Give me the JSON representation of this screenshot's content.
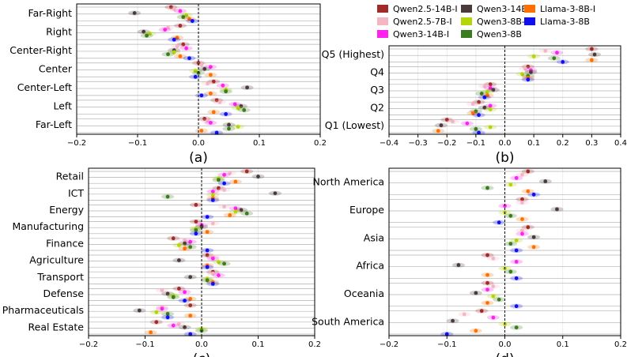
{
  "legend": {
    "placement": "top-right",
    "entries": [
      {
        "name": "Qwen2.5-14B-I",
        "color": "#a32a2a"
      },
      {
        "name": "Qwen2.5-7B-I",
        "color": "#f4b6c2"
      },
      {
        "name": "Qwen3-14B-I",
        "color": "#ff22ee"
      },
      {
        "name": "Qwen3-14B",
        "color": "#4b3a3a"
      },
      {
        "name": "Qwen3-8B-I",
        "color": "#b5d40a"
      },
      {
        "name": "Qwen3-8B",
        "color": "#3a7d1e"
      },
      {
        "name": "Llama-3-8B-I",
        "color": "#ff7000"
      },
      {
        "name": "Llama-3-8B",
        "color": "#1010ee"
      }
    ]
  },
  "chart_data": [
    {
      "type": "scatter",
      "label": "(a)",
      "xlim": [
        -0.2,
        0.2
      ],
      "xticks": [
        "−0.2",
        "−0.1",
        "0.0",
        "0.1",
        "0.2"
      ],
      "categories": [
        "Far-Right",
        "Right",
        "Center-Right",
        "Center",
        "Center-Left",
        "Left",
        "Far-Left"
      ],
      "grid": true,
      "series": [
        {
          "name": "Qwen2.5-14B-I",
          "values": [
            -0.045,
            -0.03,
            -0.025,
            0.0,
            0.025,
            0.03,
            0.01
          ]
        },
        {
          "name": "Qwen2.5-7B-I",
          "values": [
            -0.04,
            -0.05,
            -0.035,
            0.005,
            0.015,
            0.035,
            0.015
          ]
        },
        {
          "name": "Qwen3-14B-I",
          "values": [
            -0.03,
            -0.055,
            -0.02,
            0.02,
            0.04,
            0.06,
            0.02
          ]
        },
        {
          "name": "Qwen3-14B",
          "values": [
            -0.105,
            -0.09,
            -0.04,
            0.01,
            0.08,
            0.07,
            0.05
          ]
        },
        {
          "name": "Qwen3-8B-I",
          "values": [
            -0.02,
            -0.08,
            -0.04,
            -0.005,
            0.045,
            0.065,
            0.065
          ]
        },
        {
          "name": "Qwen3-8B",
          "values": [
            -0.025,
            -0.085,
            -0.05,
            0.0,
            0.045,
            0.075,
            0.05
          ]
        },
        {
          "name": "Llama-3-8B-I",
          "values": [
            -0.015,
            -0.035,
            -0.03,
            0.02,
            0.02,
            0.025,
            0.005
          ]
        },
        {
          "name": "Llama-3-8B",
          "values": [
            -0.01,
            -0.04,
            -0.015,
            -0.005,
            0.005,
            0.045,
            0.03
          ]
        }
      ]
    },
    {
      "type": "scatter",
      "label": "(b)",
      "xlim": [
        -0.4,
        0.4
      ],
      "xticks": [
        "−0.4",
        "−0.3",
        "−0.2",
        "−0.1",
        "0.0",
        "0.1",
        "0.2",
        "0.3",
        "0.4"
      ],
      "categories": [
        "Q5 (Highest)",
        "Q4",
        "Q3",
        "Q2",
        "Q1 (Lowest)"
      ],
      "grid": true,
      "series": [
        {
          "name": "Qwen2.5-14B-I",
          "values": [
            0.3,
            0.08,
            -0.05,
            -0.09,
            -0.2
          ]
        },
        {
          "name": "Qwen2.5-7B-I",
          "values": [
            0.14,
            0.07,
            -0.07,
            -0.11,
            -0.18
          ]
        },
        {
          "name": "Qwen3-14B-I",
          "values": [
            0.18,
            0.09,
            -0.05,
            -0.05,
            -0.13
          ]
        },
        {
          "name": "Qwen3-14B",
          "values": [
            0.31,
            0.09,
            -0.04,
            -0.07,
            -0.22
          ]
        },
        {
          "name": "Qwen3-8B-I",
          "values": [
            0.1,
            0.06,
            -0.06,
            -0.05,
            -0.05
          ]
        },
        {
          "name": "Qwen3-8B",
          "values": [
            0.17,
            0.08,
            -0.08,
            -0.1,
            -0.1
          ]
        },
        {
          "name": "Llama-3-8B-I",
          "values": [
            0.3,
            0.08,
            -0.06,
            -0.11,
            -0.23
          ]
        },
        {
          "name": "Llama-3-8B",
          "values": [
            0.2,
            0.08,
            -0.07,
            -0.09,
            -0.09
          ]
        }
      ]
    },
    {
      "type": "scatter",
      "label": "(c)",
      "xlim": [
        -0.2,
        0.2
      ],
      "xticks": [
        "−0.2",
        "−0.1",
        "0.0",
        "0.1",
        "0.2"
      ],
      "categories": [
        "Retail",
        "ICT",
        "Energy",
        "Manufacturing",
        "Finance",
        "Agriculture",
        "Transport",
        "Defense",
        "Pharmaceuticals",
        "Real Estate"
      ],
      "grid": true,
      "series": [
        {
          "name": "Qwen2.5-14B-I",
          "values": [
            0.08,
            0.03,
            -0.01,
            -0.01,
            -0.05,
            0.01,
            0.02,
            -0.04,
            -0.02,
            -0.08
          ]
        },
        {
          "name": "Qwen2.5-7B-I",
          "values": [
            0.05,
            0.04,
            0.04,
            0.02,
            -0.03,
            0.02,
            0.02,
            -0.07,
            -0.07,
            -0.04
          ]
        },
        {
          "name": "Qwen3-14B-I",
          "values": [
            0.04,
            0.02,
            0.06,
            0.0,
            -0.02,
            0.02,
            0.03,
            -0.03,
            -0.07,
            -0.05
          ]
        },
        {
          "name": "Qwen3-14B",
          "values": [
            0.1,
            0.13,
            0.07,
            0.0,
            -0.03,
            -0.04,
            -0.02,
            -0.06,
            -0.11,
            -0.03
          ]
        },
        {
          "name": "Qwen3-8B-I",
          "values": [
            0.03,
            0.02,
            0.06,
            -0.01,
            -0.04,
            0.03,
            0.01,
            -0.05,
            -0.08,
            0.0
          ]
        },
        {
          "name": "Qwen3-8B",
          "values": [
            0.03,
            -0.06,
            0.08,
            -0.01,
            -0.02,
            0.04,
            0.01,
            -0.05,
            -0.06,
            0.0
          ]
        },
        {
          "name": "Llama-3-8B-I",
          "values": [
            0.06,
            0.02,
            0.05,
            0.01,
            -0.03,
            0.01,
            0.02,
            -0.02,
            -0.02,
            -0.09
          ]
        },
        {
          "name": "Llama-3-8B",
          "values": [
            0.04,
            0.02,
            0.01,
            -0.01,
            0.01,
            0.01,
            0.02,
            -0.03,
            -0.06,
            -0.02
          ]
        }
      ]
    },
    {
      "type": "scatter",
      "label": "(d)",
      "xlim": [
        -0.2,
        0.2
      ],
      "xticks": [
        "−0.2",
        "−0.1",
        "0.0",
        "0.1",
        "0.2"
      ],
      "categories": [
        "North America",
        "Europe",
        "Asia",
        "Africa",
        "Oceania",
        "South America"
      ],
      "grid": true,
      "series": [
        {
          "name": "Qwen2.5-14B-I",
          "values": [
            0.04,
            0.03,
            0.04,
            -0.03,
            -0.03,
            -0.04
          ]
        },
        {
          "name": "Qwen2.5-7B-I",
          "values": [
            0.03,
            0.03,
            0.03,
            -0.02,
            -0.02,
            -0.07
          ]
        },
        {
          "name": "Qwen3-14B-I",
          "values": [
            0.02,
            0.0,
            0.03,
            0.02,
            -0.03,
            -0.02
          ]
        },
        {
          "name": "Qwen3-14B",
          "values": [
            0.07,
            0.09,
            0.05,
            -0.08,
            -0.05,
            -0.09
          ]
        },
        {
          "name": "Qwen3-8B-I",
          "values": [
            0.01,
            0.0,
            0.02,
            0.0,
            -0.02,
            0.0
          ]
        },
        {
          "name": "Qwen3-8B",
          "values": [
            -0.03,
            0.01,
            0.01,
            0.01,
            -0.01,
            0.02
          ]
        },
        {
          "name": "Llama-3-8B-I",
          "values": [
            0.04,
            0.03,
            0.05,
            -0.03,
            -0.03,
            -0.05
          ]
        },
        {
          "name": "Llama-3-8B",
          "values": [
            0.05,
            -0.01,
            0.02,
            0.02,
            0.02,
            -0.1
          ]
        }
      ]
    }
  ]
}
